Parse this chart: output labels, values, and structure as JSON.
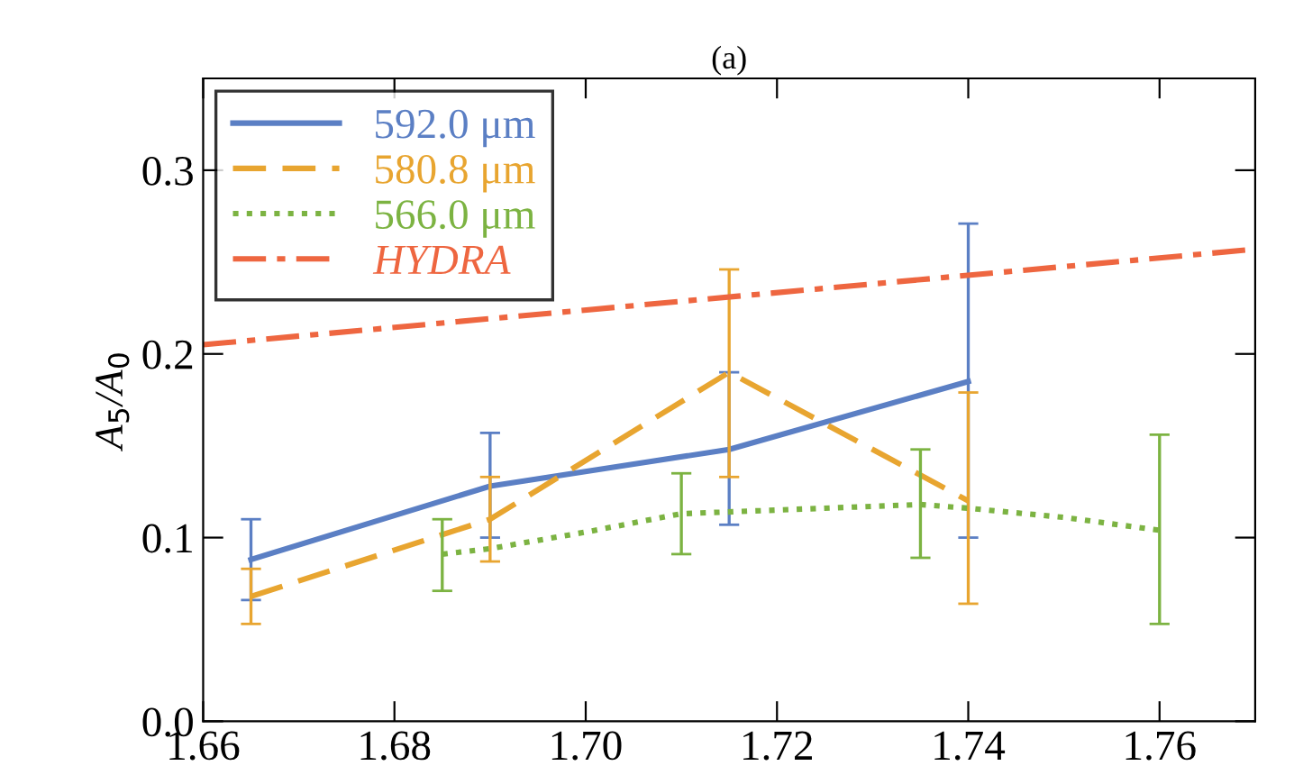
{
  "chart_data": {
    "type": "line",
    "title": "(a)",
    "ylabel": "A$_{5}$/A$_{0}$",
    "xlim": [
      1.66,
      1.77
    ],
    "xticks": [
      {
        "value": 1.66,
        "label": "1.66"
      },
      {
        "value": 1.68,
        "label": "1.68"
      },
      {
        "value": 1.7,
        "label": "1.70"
      },
      {
        "value": 1.72,
        "label": "1.72"
      },
      {
        "value": 1.74,
        "label": "1.74"
      },
      {
        "value": 1.76,
        "label": "1.76"
      }
    ],
    "ylim": [
      0,
      0.35
    ],
    "yticks": [
      {
        "value": 0,
        "label": "0.0"
      },
      0.1,
      0.2,
      0.3
    ],
    "grid": false,
    "legend": "top left",
    "series": [
      {
        "name": "592.0 μm",
        "color": "#5b7fc4",
        "line_style": "solid",
        "x": [
          1.665,
          1.69,
          1.715,
          1.74
        ],
        "values": [
          0.088,
          0.128,
          0.148,
          0.185
        ],
        "errors": [
          [
            0.066,
            0.11
          ],
          [
            0.1,
            0.157
          ],
          [
            0.107,
            0.19
          ],
          [
            0.1,
            0.271
          ]
        ]
      },
      {
        "name": "580.8 μm",
        "color": "#e8a530",
        "line_style": "dashed",
        "x": [
          1.665,
          1.69,
          1.715,
          1.74
        ],
        "values": [
          0.068,
          0.11,
          0.19,
          0.12
        ],
        "errors": [
          [
            0.053,
            0.083
          ],
          [
            0.087,
            0.133
          ],
          [
            0.133,
            0.246
          ],
          [
            0.064,
            0.179
          ]
        ]
      },
      {
        "name": "566.0 μm",
        "color": "#7cb342",
        "line_style": "dotted",
        "x": [
          1.685,
          1.69,
          1.7,
          1.71,
          1.72,
          1.735,
          1.74,
          1.75,
          1.76
        ],
        "values": [
          0.091,
          0.094,
          0.103,
          0.113,
          0.115,
          0.118,
          0.116,
          0.111,
          0.104
        ],
        "errors": [
          [
            0.071,
            0.11
          ],
          null,
          null,
          [
            0.091,
            0.135
          ],
          null,
          [
            0.089,
            0.148
          ],
          null,
          null,
          [
            0.053,
            0.156
          ]
        ]
      },
      {
        "name": "HYDRA",
        "color": "#ee6640",
        "line_style": "dashdot",
        "x": [
          1.66,
          1.77
        ],
        "values": [
          0.205,
          0.257
        ]
      }
    ]
  }
}
